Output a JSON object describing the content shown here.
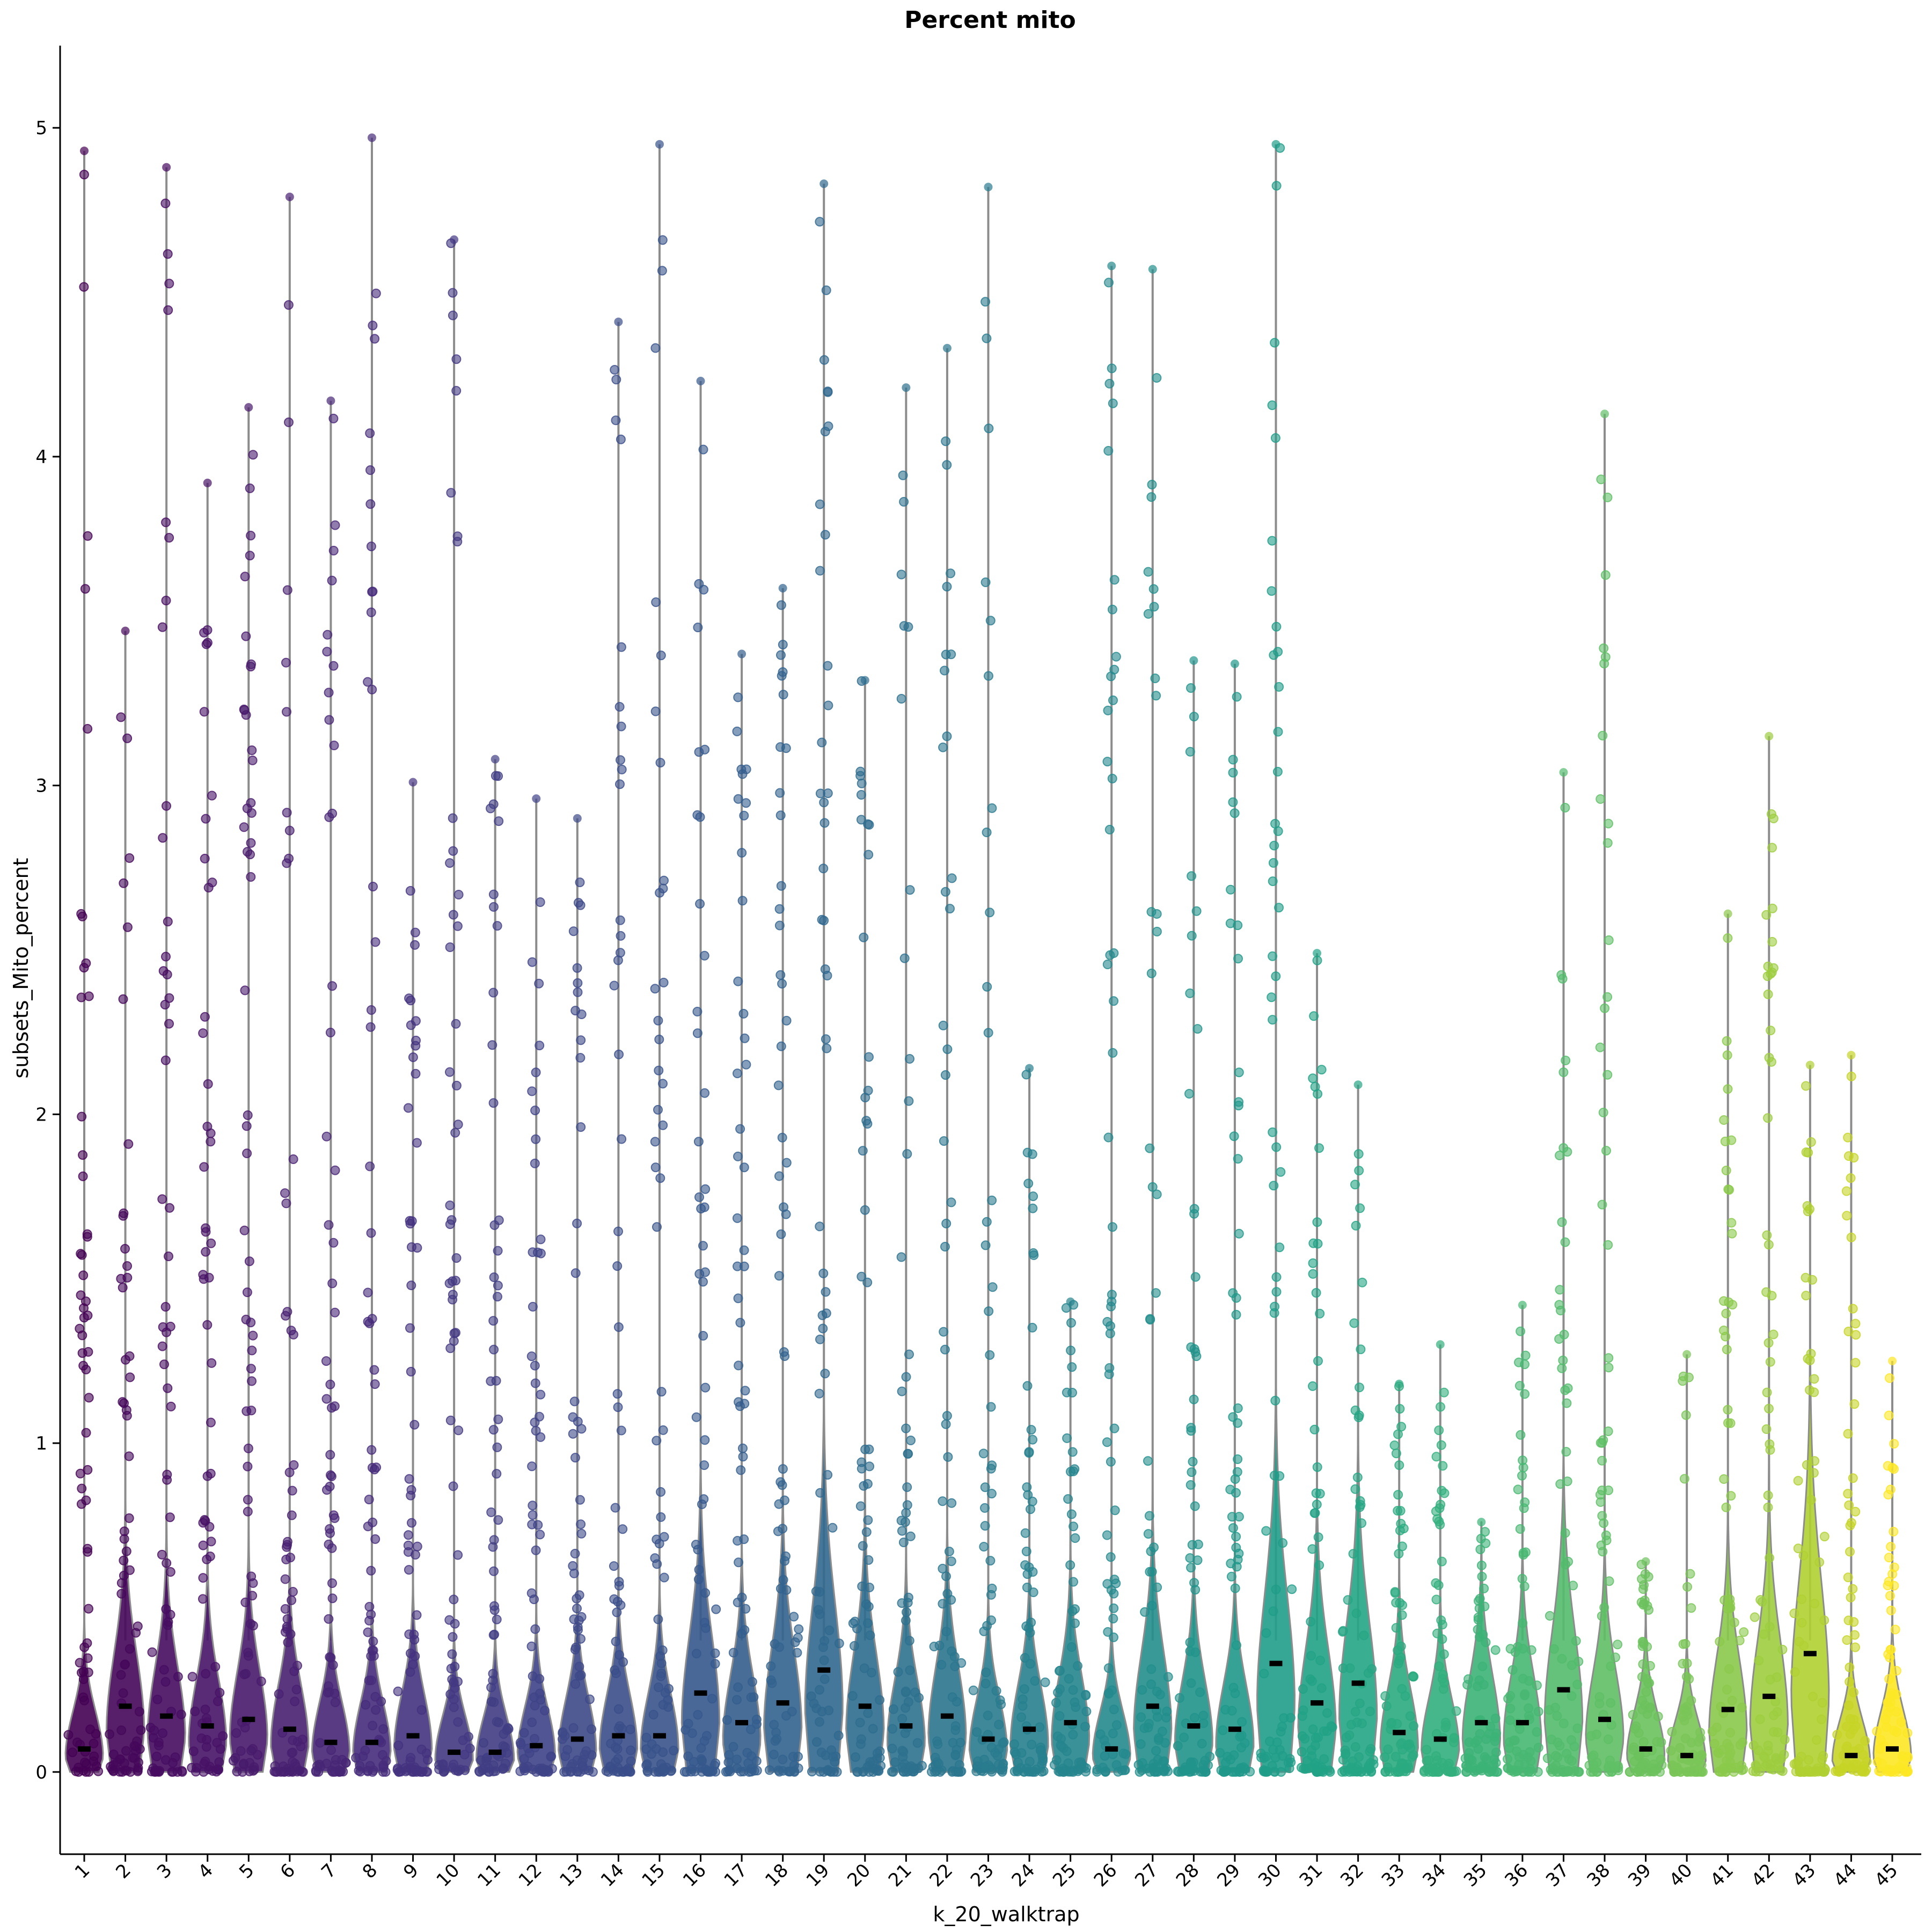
{
  "chart_data": {
    "type": "violin",
    "title": "Percent mito",
    "xlabel": "k_20_walktrap",
    "ylabel": "subsets_Mito_percent",
    "ylim": [
      -0.25,
      5.25
    ],
    "yticks": [
      0,
      1,
      2,
      3,
      4,
      5
    ],
    "grid": false,
    "legend": "none",
    "categories": [
      "1",
      "2",
      "3",
      "4",
      "5",
      "6",
      "7",
      "8",
      "9",
      "10",
      "11",
      "12",
      "13",
      "14",
      "15",
      "16",
      "17",
      "18",
      "19",
      "20",
      "21",
      "22",
      "23",
      "24",
      "25",
      "26",
      "27",
      "28",
      "29",
      "30",
      "31",
      "32",
      "33",
      "34",
      "35",
      "36",
      "37",
      "38",
      "39",
      "40",
      "41",
      "42",
      "43",
      "44",
      "45"
    ],
    "medians": [
      0.07,
      0.2,
      0.17,
      0.14,
      0.16,
      0.13,
      0.09,
      0.09,
      0.11,
      0.06,
      0.06,
      0.08,
      0.1,
      0.11,
      0.11,
      0.24,
      0.15,
      0.21,
      0.31,
      0.2,
      0.14,
      0.17,
      0.1,
      0.13,
      0.15,
      0.07,
      0.2,
      0.14,
      0.13,
      0.33,
      0.21,
      0.27,
      0.12,
      0.1,
      0.15,
      0.15,
      0.25,
      0.16,
      0.07,
      0.05,
      0.19,
      0.23,
      0.36,
      0.05,
      0.07
    ],
    "maxima": [
      4.93,
      3.47,
      4.88,
      3.92,
      4.15,
      4.79,
      4.17,
      4.97,
      3.01,
      4.66,
      3.08,
      2.96,
      2.9,
      4.41,
      4.95,
      4.23,
      3.4,
      3.6,
      4.83,
      3.32,
      4.21,
      4.33,
      4.82,
      2.14,
      1.43,
      4.58,
      4.57,
      3.38,
      3.37,
      4.95,
      2.49,
      2.09,
      1.18,
      1.3,
      0.76,
      1.42,
      3.04,
      4.13,
      0.64,
      1.27,
      2.61,
      3.15,
      2.15,
      2.18,
      1.25
    ],
    "colors": [
      "#440154",
      "#45075a",
      "#460c60",
      "#471366",
      "#481a6c",
      "#482071",
      "#472676",
      "#462c7b",
      "#44327f",
      "#433882",
      "#413d84",
      "#3f4387",
      "#3d4988",
      "#3b4e8a",
      "#38538b",
      "#36588c",
      "#345e8d",
      "#32638e",
      "#30688e",
      "#2e6d8e",
      "#2d718e",
      "#2b768e",
      "#297b8e",
      "#27808e",
      "#26858d",
      "#24898d",
      "#228e8c",
      "#21938b",
      "#1f988a",
      "#1f9d88",
      "#21a286",
      "#25a584",
      "#2baa80",
      "#32af7d",
      "#3cb377",
      "#47b872",
      "#53bb6c",
      "#5fbf65",
      "#6cc25d",
      "#7ac557",
      "#8bc94b",
      "#9dcd3f",
      "#b0d032",
      "#c6d426",
      "#fde725"
    ]
  }
}
